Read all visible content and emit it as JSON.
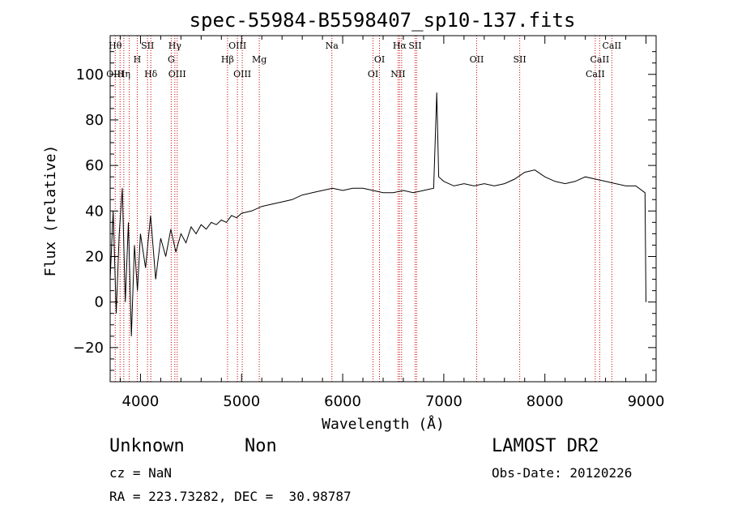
{
  "chart_data": {
    "type": "line",
    "title": "spec-55984-B5598407_sp10-137.fits",
    "xlabel": "Wavelength (Å)",
    "ylabel": "Flux (relative)",
    "xlim": [
      3700,
      9100
    ],
    "ylim": [
      -35,
      117
    ],
    "xticks": [
      4000,
      5000,
      6000,
      7000,
      8000,
      9000
    ],
    "yticks": [
      -20,
      0,
      20,
      40,
      60,
      80,
      100
    ],
    "ytick_labels": [
      "−20",
      "0",
      "20",
      "40",
      "60",
      "80",
      "100"
    ],
    "grid": false,
    "series": [
      {
        "points": [
          [
            3700,
            10
          ],
          [
            3730,
            40
          ],
          [
            3760,
            -5
          ],
          [
            3790,
            30
          ],
          [
            3820,
            50
          ],
          [
            3850,
            0
          ],
          [
            3880,
            35
          ],
          [
            3910,
            -15
          ],
          [
            3940,
            25
          ],
          [
            3970,
            5
          ],
          [
            4000,
            30
          ],
          [
            4050,
            15
          ],
          [
            4100,
            38
          ],
          [
            4150,
            10
          ],
          [
            4200,
            28
          ],
          [
            4250,
            20
          ],
          [
            4300,
            32
          ],
          [
            4350,
            22
          ],
          [
            4400,
            30
          ],
          [
            4450,
            26
          ],
          [
            4500,
            33
          ],
          [
            4550,
            30
          ],
          [
            4600,
            34
          ],
          [
            4650,
            32
          ],
          [
            4700,
            35
          ],
          [
            4750,
            34
          ],
          [
            4800,
            36
          ],
          [
            4850,
            35
          ],
          [
            4900,
            38
          ],
          [
            4950,
            37
          ],
          [
            5000,
            39
          ],
          [
            5100,
            40
          ],
          [
            5200,
            42
          ],
          [
            5300,
            43
          ],
          [
            5400,
            44
          ],
          [
            5500,
            45
          ],
          [
            5600,
            47
          ],
          [
            5700,
            48
          ],
          [
            5800,
            49
          ],
          [
            5900,
            50
          ],
          [
            6000,
            49
          ],
          [
            6100,
            50
          ],
          [
            6200,
            50
          ],
          [
            6300,
            49
          ],
          [
            6400,
            48
          ],
          [
            6500,
            48
          ],
          [
            6600,
            49
          ],
          [
            6700,
            48
          ],
          [
            6800,
            49
          ],
          [
            6900,
            50
          ],
          [
            6930,
            92
          ],
          [
            6950,
            55
          ],
          [
            7000,
            53
          ],
          [
            7100,
            51
          ],
          [
            7200,
            52
          ],
          [
            7300,
            51
          ],
          [
            7400,
            52
          ],
          [
            7500,
            51
          ],
          [
            7600,
            52
          ],
          [
            7700,
            54
          ],
          [
            7800,
            57
          ],
          [
            7900,
            58
          ],
          [
            8000,
            55
          ],
          [
            8100,
            53
          ],
          [
            8200,
            52
          ],
          [
            8300,
            53
          ],
          [
            8400,
            55
          ],
          [
            8500,
            54
          ],
          [
            8600,
            53
          ],
          [
            8700,
            52
          ],
          [
            8800,
            51
          ],
          [
            8900,
            51
          ],
          [
            8990,
            48
          ],
          [
            9000,
            0
          ]
        ]
      }
    ],
    "lines": [
      {
        "x": 3750,
        "labels": [
          {
            "text": "Hθ",
            "row": 0
          },
          {
            "text": "OIII",
            "row": 2
          }
        ]
      },
      {
        "x": 3798,
        "labels": []
      },
      {
        "x": 3835,
        "labels": [
          {
            "text": "Hη",
            "row": 2
          }
        ]
      },
      {
        "x": 3889,
        "labels": []
      },
      {
        "x": 3968,
        "labels": [
          {
            "text": "H",
            "row": 1
          }
        ]
      },
      {
        "x": 4070,
        "labels": [
          {
            "text": "SII",
            "row": 0
          }
        ]
      },
      {
        "x": 4102,
        "labels": [
          {
            "text": "Hδ",
            "row": 2
          }
        ]
      },
      {
        "x": 4304,
        "labels": [
          {
            "text": "G",
            "row": 1
          }
        ]
      },
      {
        "x": 4340,
        "labels": [
          {
            "text": "Hγ",
            "row": 0
          }
        ]
      },
      {
        "x": 4363,
        "labels": [
          {
            "text": "OIII",
            "row": 2
          }
        ]
      },
      {
        "x": 4861,
        "labels": [
          {
            "text": "Hβ",
            "row": 1
          }
        ]
      },
      {
        "x": 4959,
        "labels": [
          {
            "text": "OIII",
            "row": 0
          }
        ]
      },
      {
        "x": 5007,
        "labels": [
          {
            "text": "OIII",
            "row": 2
          }
        ]
      },
      {
        "x": 5175,
        "labels": [
          {
            "text": "Mg",
            "row": 1
          }
        ]
      },
      {
        "x": 5893,
        "labels": [
          {
            "text": "Na",
            "row": 0
          }
        ]
      },
      {
        "x": 6300,
        "labels": [
          {
            "text": "OI",
            "row": 2
          }
        ]
      },
      {
        "x": 6364,
        "labels": [
          {
            "text": "OI",
            "row": 1
          }
        ]
      },
      {
        "x": 6548,
        "labels": [
          {
            "text": "NII",
            "row": 2
          }
        ]
      },
      {
        "x": 6563,
        "labels": [
          {
            "text": "Hα",
            "row": 0
          }
        ]
      },
      {
        "x": 6583,
        "labels": []
      },
      {
        "x": 6716,
        "labels": [
          {
            "text": "SII",
            "row": 0
          }
        ]
      },
      {
        "x": 6731,
        "labels": []
      },
      {
        "x": 7325,
        "labels": [
          {
            "text": "OII",
            "row": 1
          }
        ]
      },
      {
        "x": 7751,
        "labels": [
          {
            "text": "SII",
            "row": 1
          }
        ]
      },
      {
        "x": 8498,
        "labels": [
          {
            "text": "CaII",
            "row": 2
          }
        ]
      },
      {
        "x": 8542,
        "labels": [
          {
            "text": "CaII",
            "row": 1
          }
        ]
      },
      {
        "x": 8662,
        "labels": [
          {
            "text": "CaII",
            "row": 0
          }
        ]
      }
    ],
    "line_color": "#cc0000",
    "data_color": "#000000"
  },
  "info": {
    "class": "Unknown",
    "subclass": "Non",
    "survey": "LAMOST DR2",
    "cz": "cz = NaN",
    "obs_date": "Obs-Date: 20120226",
    "coords": "RA = 223.73282, DEC =  30.98787"
  }
}
